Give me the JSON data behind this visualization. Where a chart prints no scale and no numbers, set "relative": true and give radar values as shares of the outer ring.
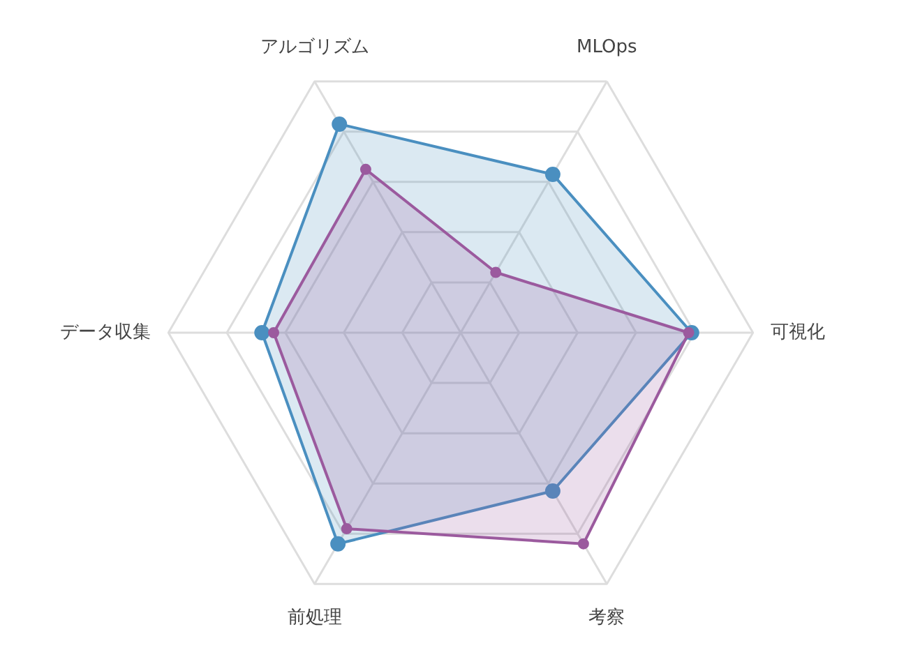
{
  "chart_data": {
    "type": "radar",
    "relative": true,
    "grid": true,
    "marker": "circle",
    "categories": [
      "MLOps",
      "可視化",
      "考察",
      "前処理",
      "データ収集",
      "アルゴリズム"
    ],
    "series": [
      {
        "color": "#4a8fc0",
        "values": [
          0.63,
          0.79,
          0.63,
          0.84,
          0.68,
          0.83
        ]
      },
      {
        "color": "#9b5a9e",
        "values": [
          0.24,
          0.78,
          0.84,
          0.78,
          0.64,
          0.65
        ]
      }
    ]
  }
}
